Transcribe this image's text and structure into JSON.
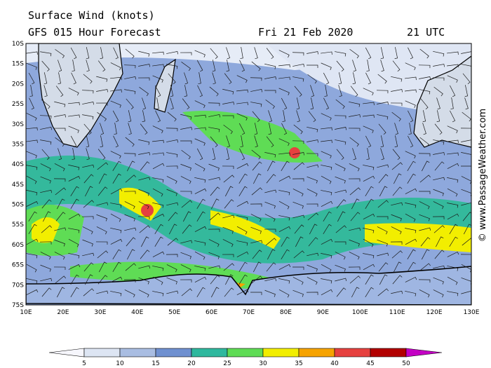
{
  "header": {
    "title": "Surface Wind (knots)",
    "model": "GFS 015 Hour Forecast",
    "date": "Fri 21 Feb 2020",
    "time": "21 UTC"
  },
  "credit": "© www.PassageWeather.com",
  "latitude_labels": [
    "10S",
    "15S",
    "20S",
    "25S",
    "30S",
    "35S",
    "40S",
    "45S",
    "50S",
    "55S",
    "60S",
    "65S",
    "70S",
    "75S"
  ],
  "longitude_labels": [
    "10E",
    "20E",
    "30E",
    "40E",
    "50E",
    "60E",
    "70E",
    "80E",
    "90E",
    "100E",
    "110E",
    "120E",
    "130E"
  ],
  "colorbar": {
    "ticks": [
      5,
      10,
      15,
      20,
      25,
      30,
      35,
      40,
      45,
      50
    ],
    "colors": [
      "#f6f6fc",
      "#dde5f3",
      "#a9bde2",
      "#6f90d0",
      "#2fb89e",
      "#5fdc55",
      "#f2ee00",
      "#f6a300",
      "#e6413f",
      "#b20000",
      "#c400c4"
    ]
  }
}
